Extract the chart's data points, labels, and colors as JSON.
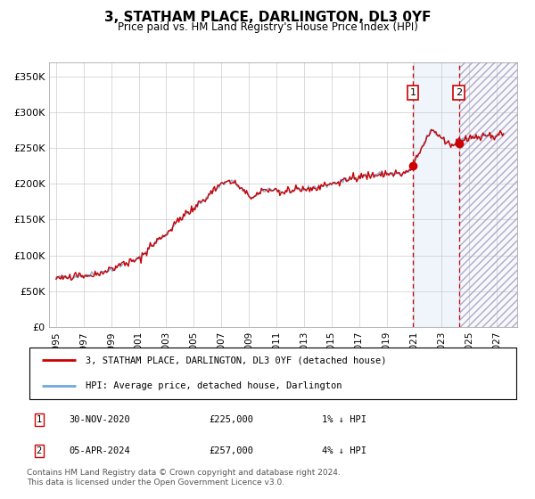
{
  "title": "3, STATHAM PLACE, DARLINGTON, DL3 0YF",
  "subtitle": "Price paid vs. HM Land Registry's House Price Index (HPI)",
  "legend_line1": "3, STATHAM PLACE, DARLINGTON, DL3 0YF (detached house)",
  "legend_line2": "HPI: Average price, detached house, Darlington",
  "marker1_date": "30-NOV-2020",
  "marker1_price": 225000,
  "marker1_label": "1% ↓ HPI",
  "marker2_date": "05-APR-2024",
  "marker2_price": 257000,
  "marker2_label": "4% ↓ HPI",
  "footer": "Contains HM Land Registry data © Crown copyright and database right 2024.\nThis data is licensed under the Open Government Licence v3.0.",
  "hpi_color": "#6fa8dc",
  "price_color": "#cc0000",
  "marker1_x": 2020.917,
  "marker2_x": 2024.267,
  "ylim_min": 0,
  "ylim_max": 370000,
  "xlim_min": 1994.5,
  "xlim_max": 2028.5,
  "yticks": [
    0,
    50000,
    100000,
    150000,
    200000,
    250000,
    300000,
    350000
  ],
  "xticks": [
    1995,
    1997,
    1999,
    2001,
    2003,
    2005,
    2007,
    2009,
    2011,
    2013,
    2015,
    2017,
    2019,
    2021,
    2023,
    2025,
    2027
  ],
  "future_start": 2024.267,
  "shade_start": 2020.917,
  "shade_end": 2024.267,
  "background_color": "#ffffff",
  "grid_color": "#cccccc"
}
